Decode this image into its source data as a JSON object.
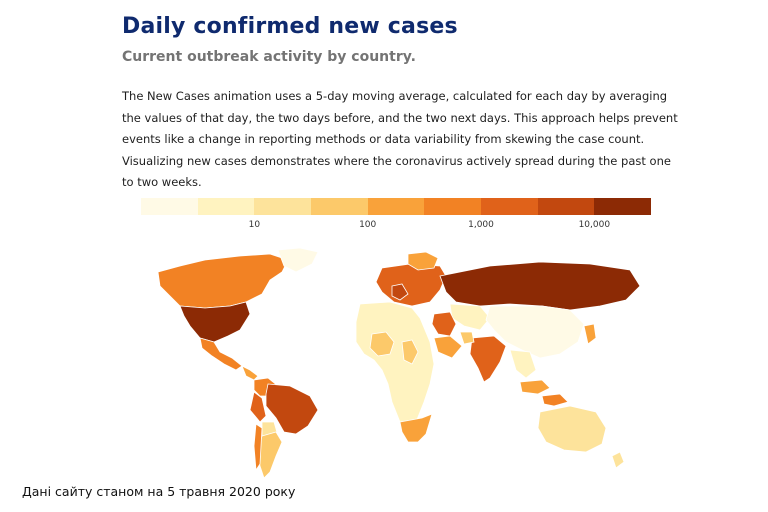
{
  "header": {
    "title": "Daily confirmed new cases",
    "subtitle": "Current outbreak activity by country."
  },
  "description": "The New Cases animation uses a 5-day moving average, calculated for each day by averaging the values of that day, the two days before, and the two next days. This approach helps prevent events like a change in reporting methods or data variability from skewing the case count. Visualizing new cases demonstrates where the coronavirus actively spread during the past one to two weeks.",
  "legend": {
    "scale": "log",
    "colors": [
      "#fffae6",
      "#fff3c0",
      "#fde39b",
      "#fcc96a",
      "#f9a23a",
      "#f28224",
      "#e0621a",
      "#c2480f",
      "#8c2a05"
    ],
    "ticks": [
      {
        "label": "10",
        "boundary": 2
      },
      {
        "label": "100",
        "boundary": 4
      },
      {
        "label": "1,000",
        "boundary": 6
      },
      {
        "label": "10,000",
        "boundary": 8
      }
    ]
  },
  "map": {
    "type": "choropleth",
    "regions": [
      {
        "name": "North America (United States)",
        "level": 8
      },
      {
        "name": "Canada",
        "level": 5
      },
      {
        "name": "Greenland",
        "level": 0
      },
      {
        "name": "Mexico",
        "level": 5
      },
      {
        "name": "Brazil",
        "level": 7
      },
      {
        "name": "Peru",
        "level": 6
      },
      {
        "name": "Argentina",
        "level": 3
      },
      {
        "name": "Russia",
        "level": 8
      },
      {
        "name": "China",
        "level": 0
      },
      {
        "name": "India",
        "level": 6
      },
      {
        "name": "Australia",
        "level": 2
      },
      {
        "name": "Southern Africa",
        "level": 4
      }
    ]
  },
  "caption": "Дані сайту станом на 5 травня 2020 року"
}
